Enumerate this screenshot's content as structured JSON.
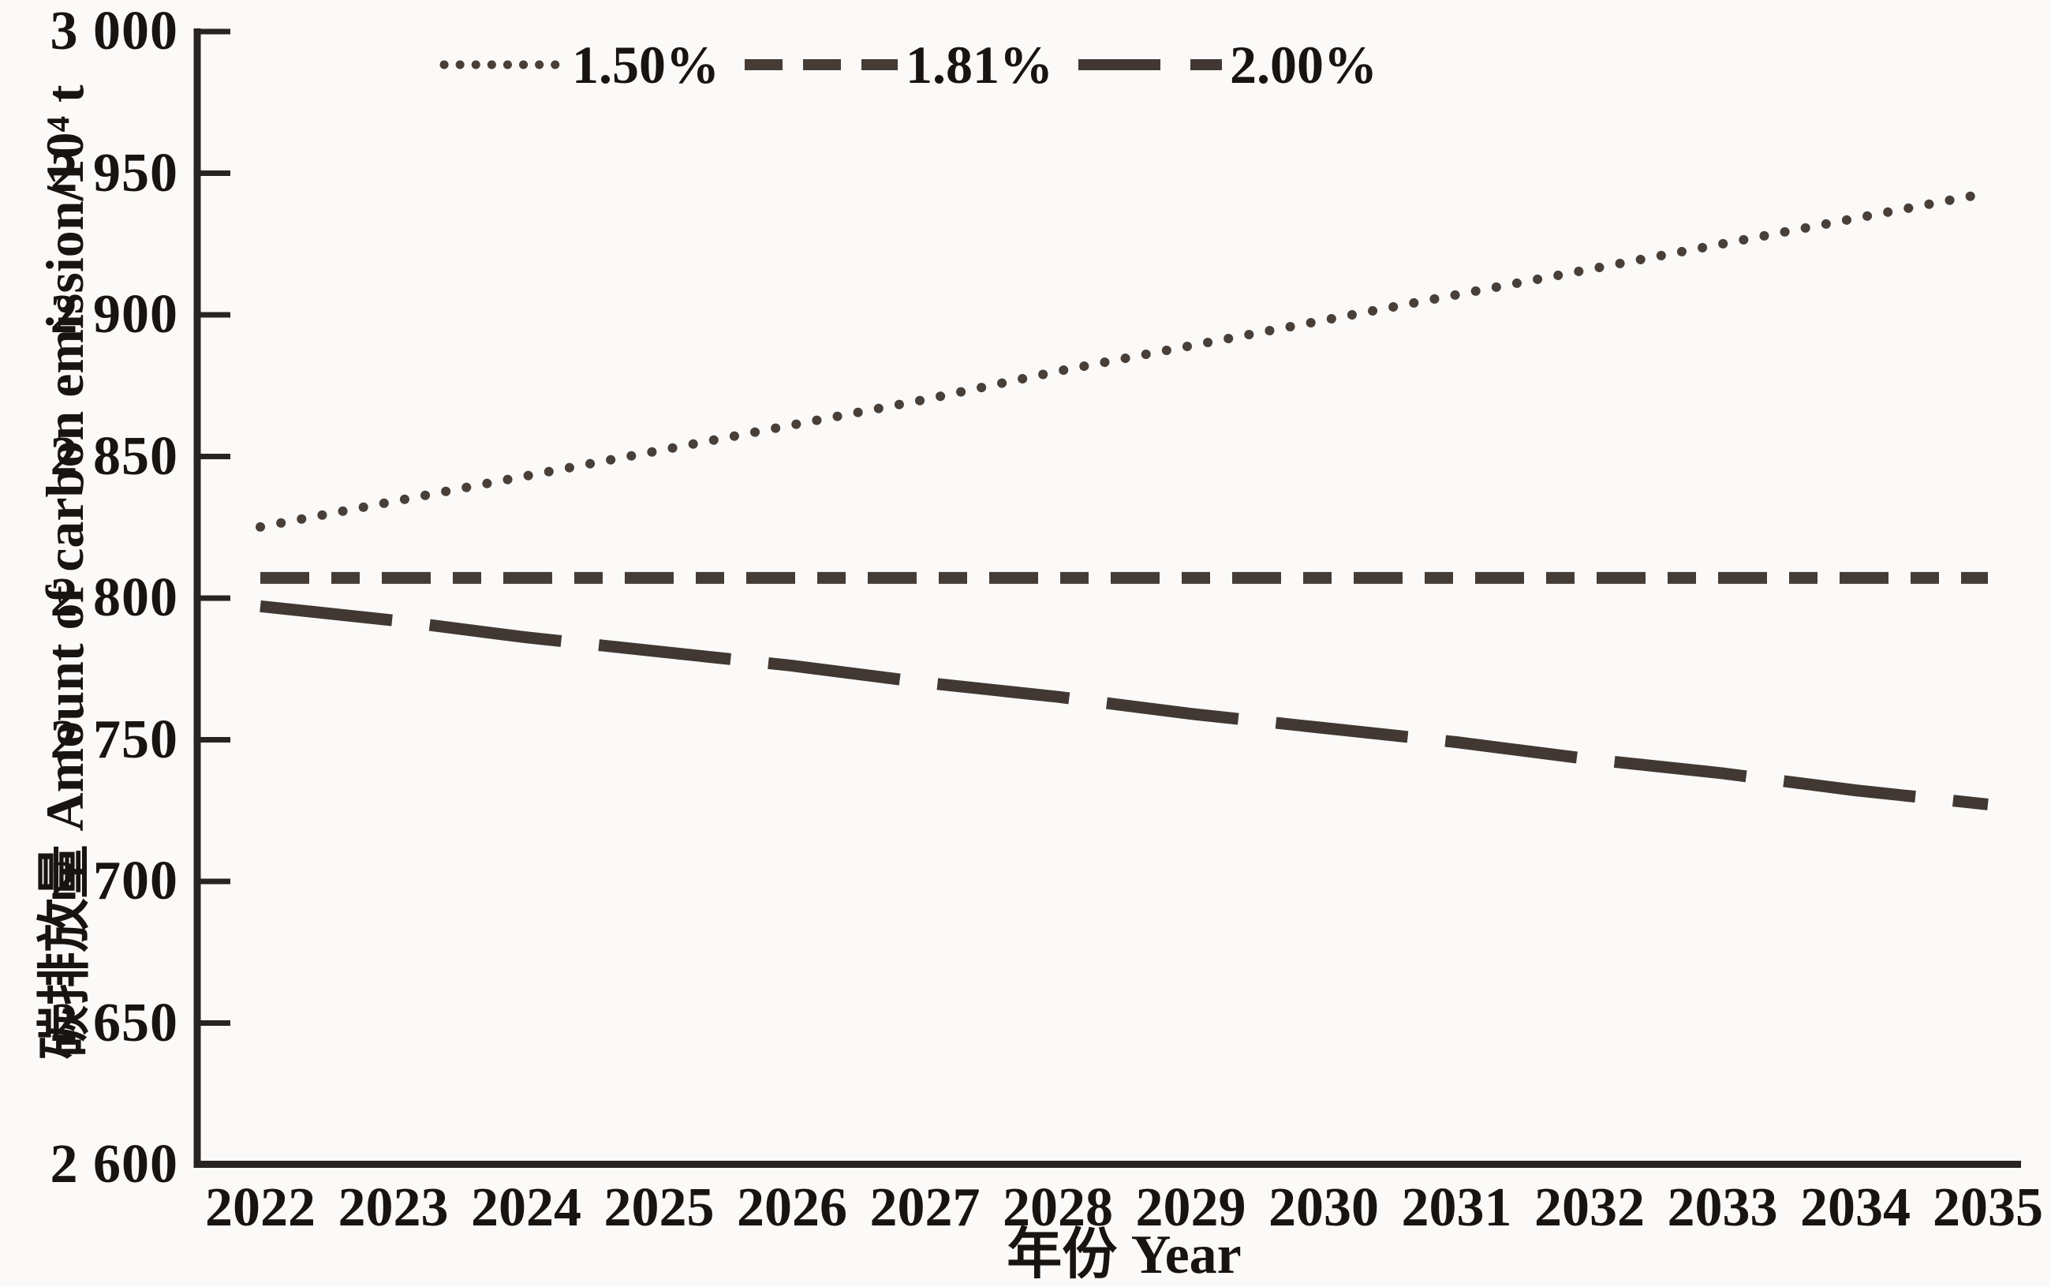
{
  "chart_data": {
    "type": "line",
    "title": "",
    "x": [
      2022,
      2023,
      2024,
      2025,
      2026,
      2027,
      2028,
      2029,
      2030,
      2031,
      2032,
      2033,
      2034,
      2035
    ],
    "xtick_labels": [
      "2022",
      "2023",
      "2024",
      "2025",
      "2026",
      "2027",
      "2028",
      "2029",
      "2030",
      "2031",
      "2032",
      "2033",
      "2034",
      "2035"
    ],
    "ytick_labels": [
      "3 000",
      "2 950",
      "2 900",
      "2 850",
      "2 800",
      "2 750",
      "2 700",
      "2 650",
      "2 600"
    ],
    "xlabel": "年份 Year",
    "ylabel": "碳排放量 Amount of carbon emission/10⁴ t",
    "xlim": [
      2022,
      2035
    ],
    "ylim": [
      2600,
      3000
    ],
    "ytick_step": 50,
    "grid": false,
    "legend_position": "top-center",
    "line_color": "#453c36",
    "series": [
      {
        "name": "1.50%",
        "style": "dotted",
        "values": [
          2825,
          2834,
          2843,
          2852,
          2861,
          2870,
          2880,
          2889,
          2898,
          2907,
          2916,
          2925,
          2934,
          2943
        ]
      },
      {
        "name": "1.81%",
        "style": "short-dash",
        "values": [
          2807,
          2807,
          2807,
          2807,
          2807,
          2807,
          2807,
          2807,
          2807,
          2807,
          2807,
          2807,
          2807,
          2807
        ]
      },
      {
        "name": "2.00%",
        "style": "long-dash",
        "values": [
          2797,
          2792,
          2786,
          2781,
          2776,
          2770,
          2765,
          2759,
          2754,
          2749,
          2743,
          2738,
          2732,
          2727
        ]
      }
    ]
  }
}
